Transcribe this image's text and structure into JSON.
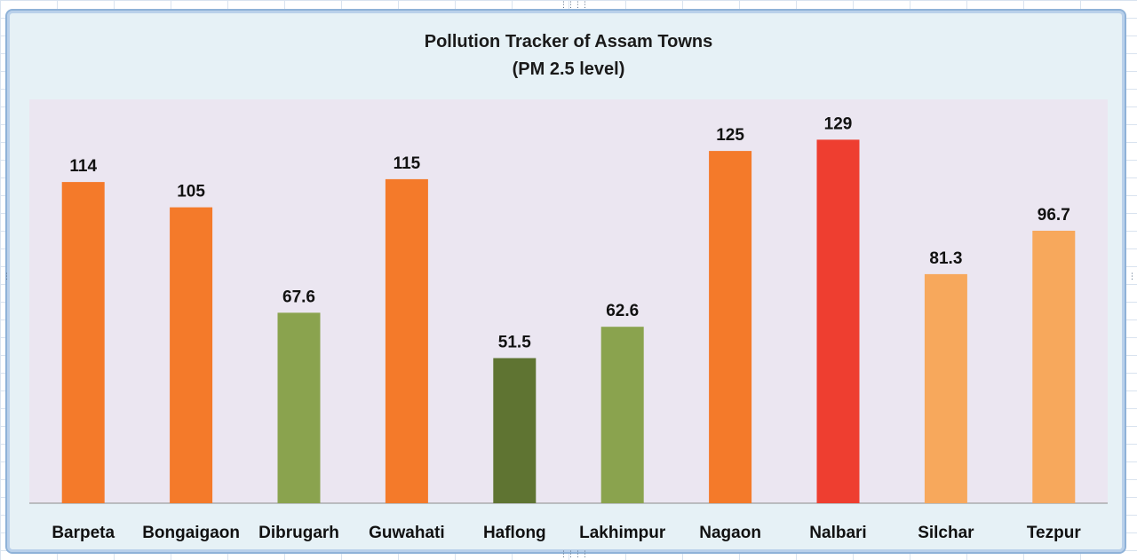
{
  "chart_data": {
    "type": "bar",
    "title": "Pollution Tracker of Assam Towns",
    "subtitle": "(PM 2.5 level)",
    "xlabel": "",
    "ylabel": "",
    "categories": [
      "Barpeta",
      "Bongaigaon",
      "Dibrugarh",
      "Guwahati",
      "Haflong",
      "Lakhimpur",
      "Nagaon",
      "Nalbari",
      "Silchar",
      "Tezpur"
    ],
    "values": [
      114,
      105,
      67.6,
      115,
      51.5,
      62.6,
      125,
      129,
      81.3,
      96.7
    ],
    "value_labels": [
      "114",
      "105",
      "67.6",
      "115",
      "51.5",
      "62.6",
      "125",
      "129",
      "81.3",
      "96.7"
    ],
    "bar_colors": [
      "#f47a2a",
      "#f47a2a",
      "#8aa34e",
      "#f47a2a",
      "#5f7432",
      "#8aa34e",
      "#f47a2a",
      "#ee3e30",
      "#f7a85c",
      "#f7a85c"
    ],
    "ylim": [
      0,
      140
    ],
    "grid": false,
    "legend": "none",
    "plot_background": "#ebe6f1"
  }
}
